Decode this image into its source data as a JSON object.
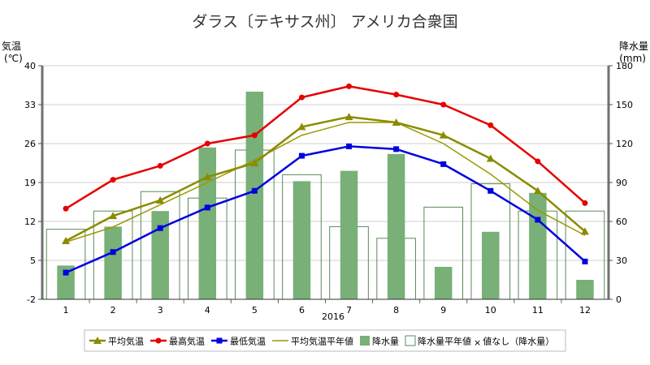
{
  "chart_data": {
    "type": "bar+line",
    "title": "ダラス〔テキサス州〕 アメリカ合衆国",
    "x_note": "2016",
    "categories": [
      "1",
      "2",
      "3",
      "4",
      "5",
      "6",
      "7",
      "8",
      "9",
      "10",
      "11",
      "12"
    ],
    "y_left": {
      "label_line1": "気温",
      "label_line2": "(℃)",
      "min": -2,
      "max": 40,
      "ticks": [
        -2,
        5,
        12,
        19,
        26,
        33,
        40
      ]
    },
    "y_right": {
      "label_line1": "降水量",
      "label_line2": "(mm)",
      "min": 0,
      "max": 180,
      "ticks": [
        0,
        30,
        60,
        90,
        120,
        150,
        180
      ]
    },
    "series": [
      {
        "name": "平均気温",
        "kind": "line",
        "axis": "left",
        "marker": "triangle",
        "color": "#8b8b00",
        "values": [
          8.5,
          13.0,
          15.8,
          20.0,
          22.5,
          29.0,
          30.8,
          29.8,
          27.5,
          23.3,
          17.5,
          10.2
        ]
      },
      {
        "name": "最高気温",
        "kind": "line",
        "axis": "left",
        "marker": "circle",
        "color": "#e60000",
        "values": [
          14.3,
          19.5,
          22.0,
          26.0,
          27.5,
          34.3,
          36.3,
          34.8,
          33.0,
          29.3,
          22.8,
          15.3
        ]
      },
      {
        "name": "最低気温",
        "kind": "line",
        "axis": "left",
        "marker": "square",
        "color": "#0000e0",
        "values": [
          2.8,
          6.5,
          10.8,
          14.5,
          17.5,
          23.8,
          25.5,
          25.0,
          22.3,
          17.5,
          12.3,
          4.8
        ]
      },
      {
        "name": "平均気温平年値",
        "kind": "line",
        "axis": "left",
        "marker": "none",
        "color": "#999900",
        "values": [
          8.3,
          11.0,
          15.0,
          19.0,
          23.0,
          27.5,
          29.8,
          29.8,
          26.0,
          20.5,
          14.0,
          9.5
        ]
      },
      {
        "name": "降水量",
        "kind": "bar",
        "axis": "right",
        "fill": "#78b078",
        "values": [
          26,
          56,
          68,
          117,
          160,
          91,
          99,
          112,
          25,
          52,
          82,
          15
        ]
      },
      {
        "name": "降水量平年値",
        "kind": "bar-outline",
        "axis": "right",
        "stroke": "#5a8a5a",
        "values": [
          54,
          68,
          83,
          78,
          115,
          96,
          56,
          47,
          71,
          89,
          68,
          68
        ]
      }
    ],
    "legend": {
      "position": "bottom",
      "items": [
        "平均気温",
        "最高気温",
        "最低気温",
        "平均気温平年値",
        "降水量",
        "降水量平年値"
      ],
      "note_x": "×",
      "note_text": "値なし（降水量）"
    },
    "grid": "horizontal"
  }
}
